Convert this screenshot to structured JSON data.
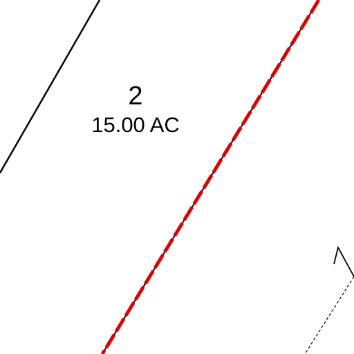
{
  "parcel": {
    "number": "2",
    "area": "15.00 AC"
  },
  "colors": {
    "background": "#ffffff",
    "lot_line": "#000000",
    "boundary_dash": "#e00000",
    "boundary_core": "#000000"
  }
}
